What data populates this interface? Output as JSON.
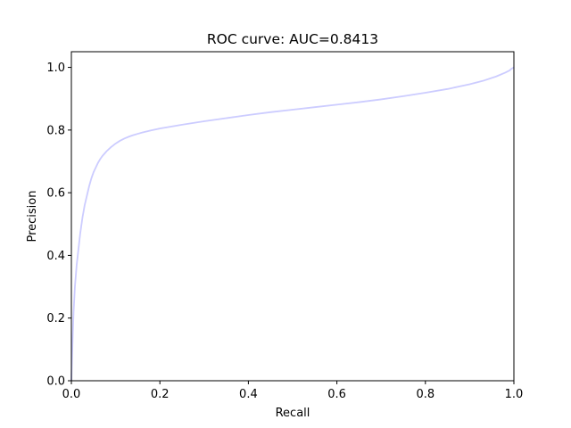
{
  "chart_data": {
    "type": "line",
    "title": "ROC curve: AUC=0.8413",
    "xlabel": "Recall",
    "ylabel": "Precision",
    "xlim": [
      0.0,
      1.0
    ],
    "ylim": [
      0.0,
      1.05
    ],
    "xticks": [
      0.0,
      0.2,
      0.4,
      0.6,
      0.8,
      1.0
    ],
    "yticks": [
      0.0,
      0.2,
      0.4,
      0.6,
      0.8,
      1.0
    ],
    "xtick_labels": [
      "0.0",
      "0.2",
      "0.4",
      "0.6",
      "0.8",
      "1.0"
    ],
    "ytick_labels": [
      "0.0",
      "0.2",
      "0.4",
      "0.6",
      "0.8",
      "1.0"
    ],
    "grid": false,
    "legend": "none",
    "series": [
      {
        "color": "#ccccff",
        "x": [
          0.0,
          0.001,
          0.003,
          0.005,
          0.008,
          0.012,
          0.016,
          0.02,
          0.025,
          0.03,
          0.035,
          0.04,
          0.045,
          0.05,
          0.055,
          0.06,
          0.065,
          0.07,
          0.08,
          0.09,
          0.1,
          0.11,
          0.12,
          0.13,
          0.14,
          0.15,
          0.16,
          0.18,
          0.2,
          0.25,
          0.3,
          0.35,
          0.4,
          0.45,
          0.5,
          0.55,
          0.6,
          0.65,
          0.7,
          0.75,
          0.8,
          0.85,
          0.9,
          0.93,
          0.96,
          0.98,
          0.99,
          0.995,
          1.0
        ],
        "y": [
          0.0,
          0.05,
          0.14,
          0.22,
          0.3,
          0.37,
          0.42,
          0.47,
          0.52,
          0.56,
          0.59,
          0.62,
          0.645,
          0.665,
          0.68,
          0.695,
          0.707,
          0.717,
          0.733,
          0.746,
          0.757,
          0.766,
          0.773,
          0.779,
          0.784,
          0.788,
          0.792,
          0.799,
          0.805,
          0.817,
          0.828,
          0.838,
          0.848,
          0.857,
          0.865,
          0.873,
          0.881,
          0.889,
          0.898,
          0.908,
          0.919,
          0.931,
          0.946,
          0.957,
          0.971,
          0.983,
          0.99,
          0.996,
          1.0
        ]
      }
    ]
  }
}
